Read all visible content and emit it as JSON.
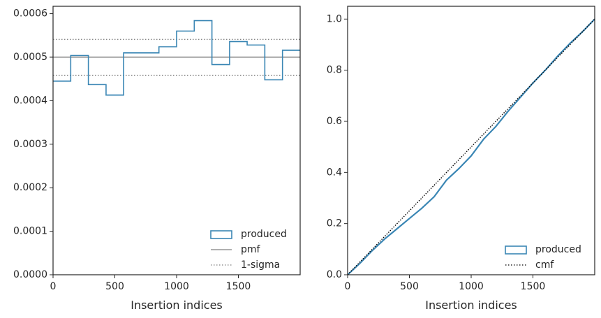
{
  "chart_data": [
    {
      "type": "line",
      "title": "",
      "xlabel": "Insertion indices",
      "ylabel": "",
      "xlim": [
        0,
        2000
      ],
      "ylim": [
        0,
        0.000617
      ],
      "grid": false,
      "legend_placement": "bottom-right",
      "x_ticks": [
        0,
        500,
        1000,
        1500
      ],
      "x_tick_labels": [
        "0",
        "500",
        "1000",
        "1500"
      ],
      "y_ticks": [
        0,
        0.0001,
        0.0002,
        0.0003,
        0.0004,
        0.0005,
        0.0006
      ],
      "y_tick_labels": [
        "0.0000",
        "0.0001",
        "0.0002",
        "0.0003",
        "0.0004",
        "0.0005",
        "0.0006"
      ],
      "histogram": {
        "bin_edges": [
          0,
          143,
          286,
          429,
          571,
          714,
          857,
          1000,
          1143,
          1286,
          1429,
          1571,
          1714,
          1857,
          2000
        ],
        "values": [
          0.000445,
          0.000504,
          0.000437,
          0.000413,
          0.00051,
          0.00051,
          0.000524,
          0.00056,
          0.000584,
          0.000483,
          0.000536,
          0.000528,
          0.000448,
          0.000516
        ]
      },
      "reference_lines": [
        {
          "name": "pmf",
          "y": 0.0005,
          "style": "solid",
          "color": "#808080"
        },
        {
          "name": "1-sigma",
          "y": 0.000541,
          "style": "dotted",
          "color": "#808080"
        },
        {
          "name": "1-sigma",
          "y": 0.000458,
          "style": "dotted",
          "color": "#808080"
        }
      ],
      "legend": [
        {
          "label": "produced",
          "kind": "patch",
          "color": "#3a86b4"
        },
        {
          "label": "pmf",
          "kind": "solid",
          "color": "#808080"
        },
        {
          "label": "1-sigma",
          "kind": "dotted",
          "color": "#808080"
        }
      ]
    },
    {
      "type": "line",
      "title": "",
      "xlabel": "Insertion indices",
      "ylabel": "",
      "xlim": [
        0,
        2000
      ],
      "ylim": [
        0,
        1.05
      ],
      "grid": false,
      "legend_placement": "bottom-right",
      "x_ticks": [
        0,
        500,
        1000,
        1500
      ],
      "x_tick_labels": [
        "0",
        "500",
        "1000",
        "1500"
      ],
      "y_ticks": [
        0,
        0.2,
        0.4,
        0.6,
        0.8,
        1.0
      ],
      "y_tick_labels": [
        "0.0",
        "0.2",
        "0.4",
        "0.6",
        "0.8",
        "1.0"
      ],
      "series": [
        {
          "name": "produced",
          "color": "#3a86b4",
          "x": [
            0,
            100,
            200,
            300,
            400,
            500,
            600,
            700,
            800,
            900,
            1000,
            1100,
            1200,
            1300,
            1400,
            1500,
            1600,
            1700,
            1800,
            1900,
            2000
          ],
          "y": [
            0,
            0.045,
            0.095,
            0.14,
            0.18,
            0.22,
            0.26,
            0.305,
            0.37,
            0.415,
            0.465,
            0.53,
            0.58,
            0.64,
            0.695,
            0.75,
            0.8,
            0.855,
            0.905,
            0.95,
            1.0
          ]
        },
        {
          "name": "cmf",
          "color": "#000000",
          "x": [
            0,
            2000
          ],
          "y": [
            0,
            1.0
          ]
        }
      ],
      "legend": [
        {
          "label": "produced",
          "kind": "patch",
          "color": "#3a86b4"
        },
        {
          "label": "cmf",
          "kind": "dotted",
          "color": "#000000"
        }
      ]
    }
  ]
}
